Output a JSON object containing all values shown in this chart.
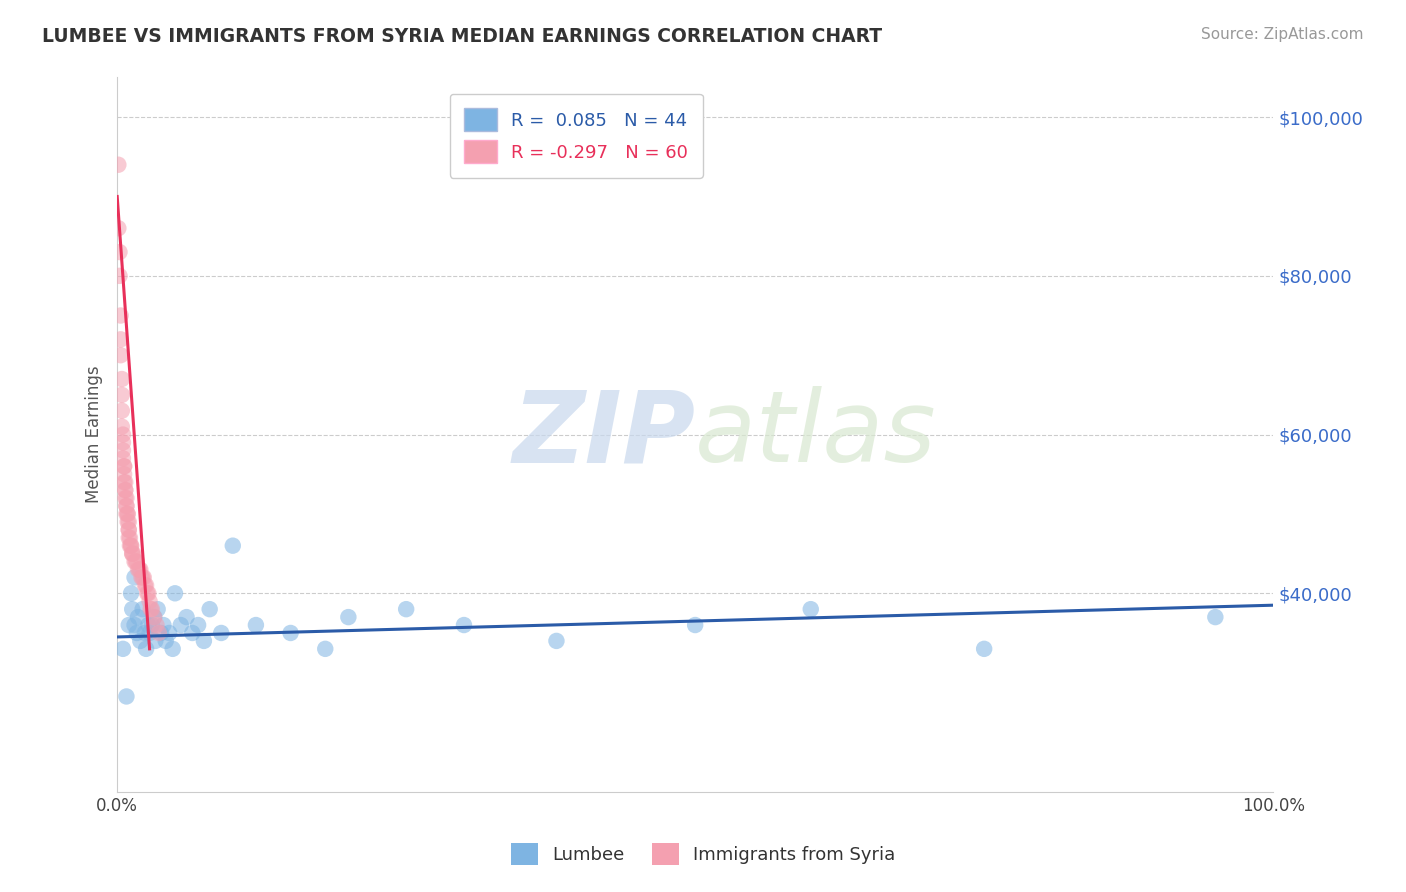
{
  "title": "LUMBEE VS IMMIGRANTS FROM SYRIA MEDIAN EARNINGS CORRELATION CHART",
  "source": "Source: ZipAtlas.com",
  "ylabel": "Median Earnings",
  "xlim": [
    0,
    1
  ],
  "ylim": [
    15000,
    105000
  ],
  "color_blue": "#7EB4E2",
  "color_pink": "#F4A0B0",
  "color_blue_line": "#2B5BA8",
  "color_pink_line": "#E8305A",
  "color_grid": "#CCCCCC",
  "color_title": "#333333",
  "color_ytick": "#3B6CC9",
  "watermark_zip": "ZIP",
  "watermark_atlas": "atlas",
  "lumbee_x": [
    0.005,
    0.008,
    0.01,
    0.012,
    0.013,
    0.015,
    0.015,
    0.017,
    0.018,
    0.02,
    0.022,
    0.024,
    0.025,
    0.027,
    0.028,
    0.03,
    0.032,
    0.033,
    0.035,
    0.038,
    0.04,
    0.042,
    0.045,
    0.048,
    0.05,
    0.055,
    0.06,
    0.065,
    0.07,
    0.075,
    0.08,
    0.09,
    0.1,
    0.12,
    0.15,
    0.18,
    0.2,
    0.25,
    0.3,
    0.38,
    0.5,
    0.6,
    0.75,
    0.95
  ],
  "lumbee_y": [
    33000,
    27000,
    36000,
    40000,
    38000,
    36000,
    42000,
    35000,
    37000,
    34000,
    38000,
    35000,
    33000,
    36000,
    35000,
    36000,
    37000,
    34000,
    38000,
    35000,
    36000,
    34000,
    35000,
    33000,
    40000,
    36000,
    37000,
    35000,
    36000,
    34000,
    38000,
    35000,
    46000,
    36000,
    35000,
    33000,
    37000,
    38000,
    36000,
    34000,
    36000,
    38000,
    33000,
    37000
  ],
  "syria_x": [
    0.001,
    0.001,
    0.002,
    0.002,
    0.003,
    0.003,
    0.003,
    0.004,
    0.004,
    0.004,
    0.004,
    0.005,
    0.005,
    0.005,
    0.005,
    0.006,
    0.006,
    0.006,
    0.006,
    0.007,
    0.007,
    0.007,
    0.007,
    0.008,
    0.008,
    0.008,
    0.008,
    0.009,
    0.009,
    0.009,
    0.01,
    0.01,
    0.01,
    0.01,
    0.011,
    0.011,
    0.012,
    0.012,
    0.013,
    0.013,
    0.014,
    0.015,
    0.016,
    0.017,
    0.018,
    0.019,
    0.02,
    0.021,
    0.022,
    0.023,
    0.024,
    0.025,
    0.026,
    0.027,
    0.028,
    0.029,
    0.03,
    0.032,
    0.034,
    0.036
  ],
  "syria_y": [
    94000,
    86000,
    83000,
    80000,
    75000,
    72000,
    70000,
    67000,
    65000,
    63000,
    61000,
    60000,
    59000,
    58000,
    57000,
    56000,
    56000,
    55000,
    54000,
    54000,
    53000,
    53000,
    52000,
    52000,
    51000,
    51000,
    50000,
    50000,
    50000,
    49000,
    49000,
    48000,
    48000,
    47000,
    47000,
    46000,
    46000,
    46000,
    45000,
    45000,
    45000,
    44000,
    44000,
    44000,
    43000,
    43000,
    43000,
    42000,
    42000,
    42000,
    41000,
    41000,
    40000,
    40000,
    39000,
    38000,
    38000,
    37000,
    36000,
    35000
  ],
  "blue_line_x": [
    0.0,
    1.0
  ],
  "blue_line_y": [
    34500,
    38500
  ],
  "pink_line_x": [
    0.0,
    0.028
  ],
  "pink_line_y": [
    90000,
    33000
  ]
}
